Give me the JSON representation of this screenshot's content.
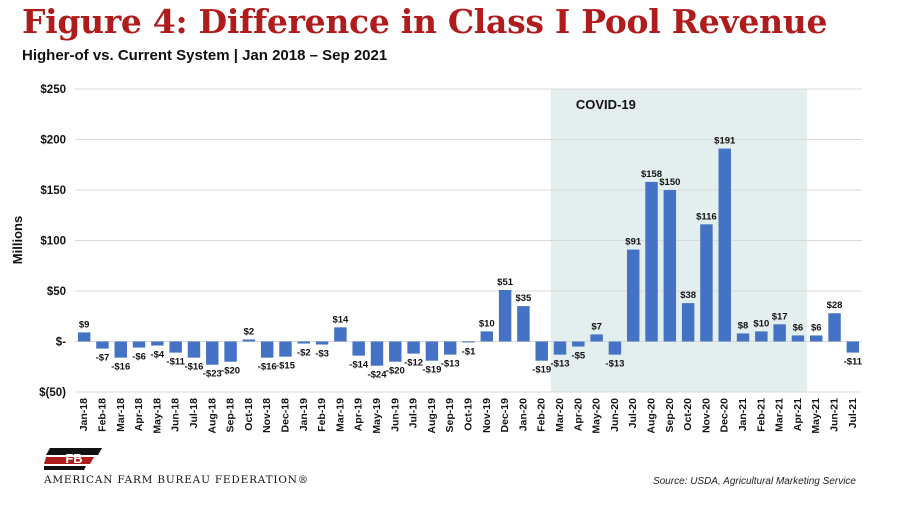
{
  "header": {
    "title": "Figure 4: Difference in Class I Pool Revenue",
    "subtitle": "Higher-of vs. Current System | Jan 2018 – Sep 2021"
  },
  "footer": {
    "org_name": "AMERICAN FARM BUREAU FEDERATION®",
    "source": "Source: USDA, Agricultural Marketing Service"
  },
  "colors": {
    "bar": "#4472c4",
    "title": "#b01c1c",
    "covid_shade": "#e3efee",
    "grid": "#d9d9d9"
  },
  "chart_data": {
    "type": "bar",
    "ylabel": "Millions",
    "ylim": [
      -50,
      250
    ],
    "yticks": [
      250,
      200,
      150,
      100,
      50,
      0,
      -50
    ],
    "ytick_labels": [
      "$250",
      "$200",
      "$150",
      "$100",
      "$50",
      "$-",
      "$(50)"
    ],
    "grid": true,
    "categories": [
      "Jan-18",
      "Feb-18",
      "Mar-18",
      "Apr-18",
      "May-18",
      "Jun-18",
      "Jul-18",
      "Aug-18",
      "Sep-18",
      "Oct-18",
      "Nov-18",
      "Dec-18",
      "Jan-19",
      "Feb-19",
      "Mar-19",
      "Apr-19",
      "May-19",
      "Jun-19",
      "Jul-19",
      "Aug-19",
      "Sep-19",
      "Oct-19",
      "Nov-19",
      "Dec-19",
      "Jan-20",
      "Feb-20",
      "Mar-20",
      "Apr-20",
      "May-20",
      "Jun-20",
      "Jul-20",
      "Aug-20",
      "Sep-20",
      "Oct-20",
      "Nov-20",
      "Dec-20",
      "Jan-21",
      "Feb-21",
      "Mar-21",
      "Apr-21",
      "May-21",
      "Jun-21",
      "Jul-21"
    ],
    "values": [
      9,
      -7,
      -16,
      -6,
      -4,
      -11,
      -16,
      -23,
      -20,
      2,
      -16,
      -15,
      -2,
      -3,
      14,
      -14,
      -24,
      -20,
      -12,
      -19,
      -13,
      -1,
      10,
      51,
      35,
      -19,
      -13,
      -5,
      7,
      -13,
      91,
      158,
      150,
      38,
      116,
      191,
      8,
      10,
      17,
      6,
      6,
      28,
      -11
    ],
    "data_labels": [
      "$9",
      "-$7",
      "-$16",
      "-$6",
      "-$4",
      "-$11",
      "-$16",
      "-$23",
      "-$20",
      "$2",
      "-$16",
      "-$15",
      "-$2",
      "-$3",
      "$14",
      "-$14",
      "-$24",
      "-$20",
      "-$12",
      "-$19",
      "-$13",
      "-$1",
      "$10",
      "$51",
      "$35",
      "-$19",
      "-$13",
      "-$5",
      "$7",
      "-$13",
      "$91",
      "$158",
      "$150",
      "$38",
      "$116",
      "$191",
      "$8",
      "$10",
      "$17",
      "$6",
      "$6",
      "$28",
      "-$11"
    ],
    "annotation": {
      "text": "COVID-19",
      "from": "Mar-20",
      "to": "Apr-21"
    }
  }
}
